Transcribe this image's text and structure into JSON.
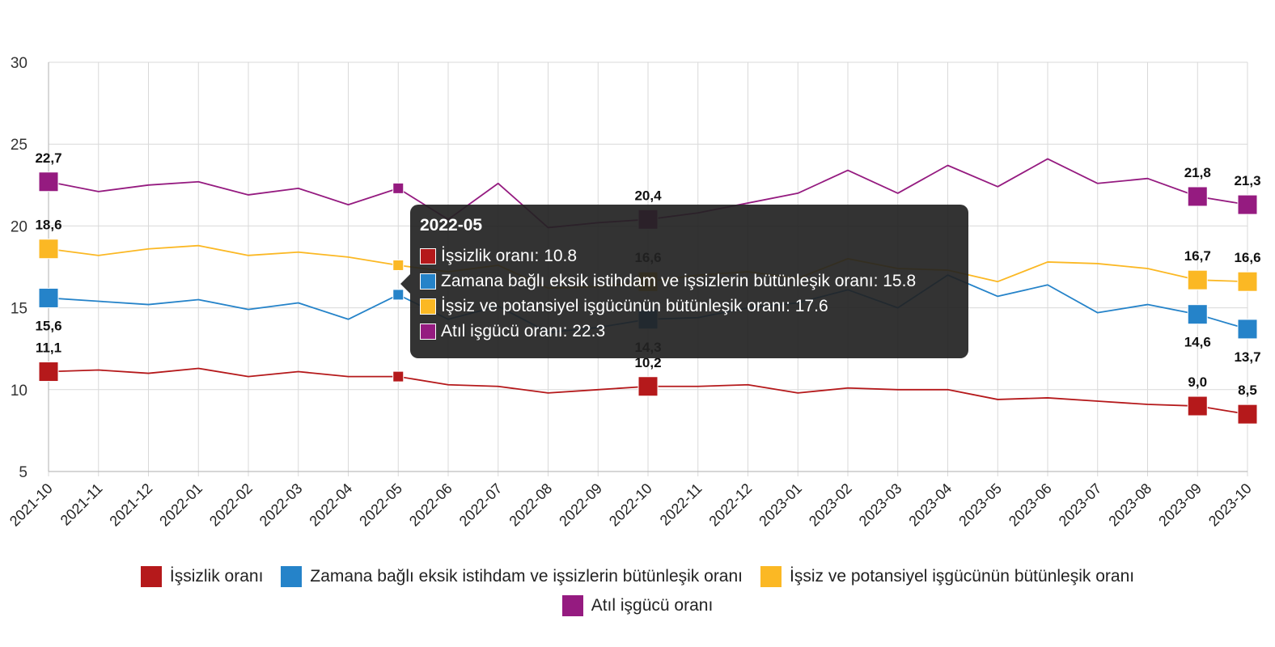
{
  "chart_data": {
    "type": "line",
    "categories": [
      "2021-10",
      "2021-11",
      "2021-12",
      "2022-01",
      "2022-02",
      "2022-03",
      "2022-04",
      "2022-05",
      "2022-06",
      "2022-07",
      "2022-08",
      "2022-09",
      "2022-10",
      "2022-11",
      "2022-12",
      "2023-01",
      "2023-02",
      "2023-03",
      "2023-04",
      "2023-05",
      "2023-06",
      "2023-07",
      "2023-08",
      "2023-09",
      "2023-10"
    ],
    "ylim": [
      5,
      30
    ],
    "yticks": [
      5,
      10,
      15,
      20,
      25,
      30
    ],
    "grid": true,
    "legend_position": "bottom",
    "series": [
      {
        "name": "İşsizlik oranı",
        "color": "#b5191b",
        "values": [
          11.1,
          11.2,
          11.0,
          11.3,
          10.8,
          11.1,
          10.8,
          10.8,
          10.3,
          10.2,
          9.8,
          10.0,
          10.2,
          10.2,
          10.3,
          9.8,
          10.1,
          10.0,
          10.0,
          9.4,
          9.5,
          9.3,
          9.1,
          9.0,
          8.5
        ]
      },
      {
        "name": "Zamana bağlı eksik istihdam ve işsizlerin bütünleşik oranı",
        "color": "#2583c9",
        "values": [
          15.6,
          15.4,
          15.2,
          15.5,
          14.9,
          15.3,
          14.3,
          15.8,
          14.3,
          15.1,
          13.5,
          13.8,
          14.3,
          14.4,
          15.0,
          15.3,
          16.1,
          15.0,
          17.0,
          15.7,
          16.4,
          14.7,
          15.2,
          14.6,
          13.7
        ]
      },
      {
        "name": "İşsiz ve potansiyel işgücünün bütünleşik oranı",
        "color": "#fbb824",
        "values": [
          18.6,
          18.2,
          18.6,
          18.8,
          18.2,
          18.4,
          18.1,
          17.6,
          17.2,
          17.6,
          16.2,
          16.3,
          16.6,
          17.0,
          17.2,
          16.8,
          18.0,
          17.4,
          17.3,
          16.6,
          17.8,
          17.7,
          17.4,
          16.7,
          16.6
        ]
      },
      {
        "name": "Atıl işgücü oranı",
        "color": "#951b80",
        "values": [
          22.7,
          22.1,
          22.5,
          22.7,
          21.9,
          22.3,
          21.3,
          22.3,
          20.4,
          22.6,
          19.9,
          20.2,
          20.4,
          20.8,
          21.4,
          22.0,
          23.4,
          22.0,
          23.7,
          22.4,
          24.1,
          22.6,
          22.9,
          21.8,
          21.3
        ]
      }
    ],
    "data_labels": [
      {
        "series": 0,
        "index": 0,
        "text": "11,1"
      },
      {
        "series": 0,
        "index": 12,
        "text": "10,2"
      },
      {
        "series": 0,
        "index": 23,
        "text": "9,0"
      },
      {
        "series": 0,
        "index": 24,
        "text": "8,5"
      },
      {
        "series": 1,
        "index": 0,
        "text": "15,6"
      },
      {
        "series": 1,
        "index": 12,
        "text": "14,3"
      },
      {
        "series": 1,
        "index": 23,
        "text": "14,6"
      },
      {
        "series": 1,
        "index": 24,
        "text": "13,7"
      },
      {
        "series": 2,
        "index": 0,
        "text": "18,6"
      },
      {
        "series": 2,
        "index": 12,
        "text": "16,6"
      },
      {
        "series": 2,
        "index": 23,
        "text": "16,7"
      },
      {
        "series": 2,
        "index": 24,
        "text": "16,6"
      },
      {
        "series": 3,
        "index": 0,
        "text": "22,7"
      },
      {
        "series": 3,
        "index": 12,
        "text": "20,4"
      },
      {
        "series": 3,
        "index": 23,
        "text": "21,8"
      },
      {
        "series": 3,
        "index": 24,
        "text": "21,3"
      }
    ],
    "big_marker_indices": [
      0,
      12,
      23,
      24
    ],
    "hover_index": 7
  },
  "tooltip": {
    "title": "2022-05",
    "rows": [
      {
        "label": "İşsizlik oranı: 10.8",
        "color": "#b5191b"
      },
      {
        "label": "Zamana bağlı eksik istihdam ve işsizlerin bütünleşik oranı: 15.8",
        "color": "#2583c9"
      },
      {
        "label": "İşsiz ve potansiyel işgücünün bütünleşik oranı: 17.6",
        "color": "#fbb824"
      },
      {
        "label": "Atıl işgücü oranı: 22.3",
        "color": "#951b80"
      }
    ]
  },
  "legend": [
    {
      "label": "İşsizlik oranı",
      "color": "#b5191b"
    },
    {
      "label": "Zamana bağlı eksik istihdam ve işsizlerin bütünleşik oranı",
      "color": "#2583c9"
    },
    {
      "label": "İşsiz ve potansiyel işgücünün bütünleşik oranı",
      "color": "#fbb824"
    },
    {
      "label": "Atıl işgücü oranı",
      "color": "#951b80"
    }
  ]
}
